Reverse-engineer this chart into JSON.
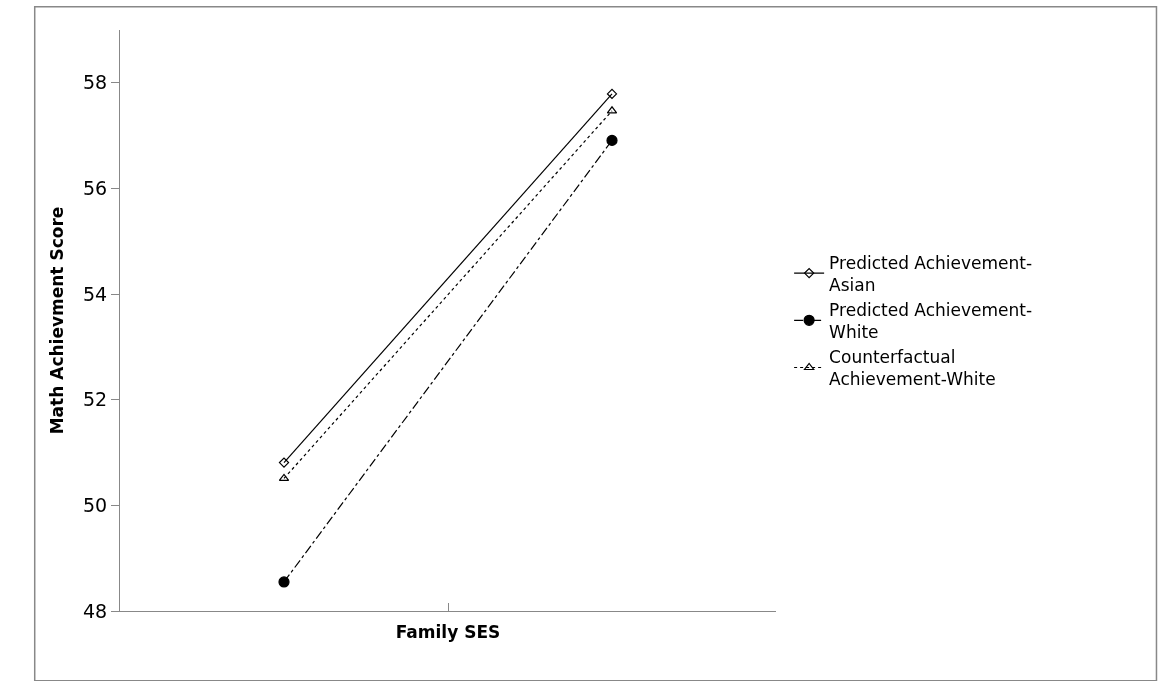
{
  "chart_data": {
    "type": "line",
    "xlabel": "Family SES",
    "ylabel": "Math Achievment Score",
    "categories": [
      null,
      null
    ],
    "series": [
      {
        "name": "Predicted Achievement-Asian",
        "color": "#000000",
        "values": [
          50.81,
          57.79
        ],
        "marker": "diamond",
        "line_style": "solid"
      },
      {
        "name": "Predicted Achievement-White",
        "color": "#000000",
        "values": [
          48.55,
          56.91
        ],
        "marker": "circle",
        "line_style": "dashdot"
      },
      {
        "name": "Counterfactual Achievement-White",
        "color": "#000000",
        "values": [
          50.51,
          57.47
        ],
        "marker": "triangle",
        "line_style": "dotted"
      }
    ],
    "ylim": [
      48,
      59
    ],
    "yticks": [
      48,
      50,
      52,
      54,
      56,
      58
    ],
    "legend": "right",
    "tick_labels": "y"
  }
}
